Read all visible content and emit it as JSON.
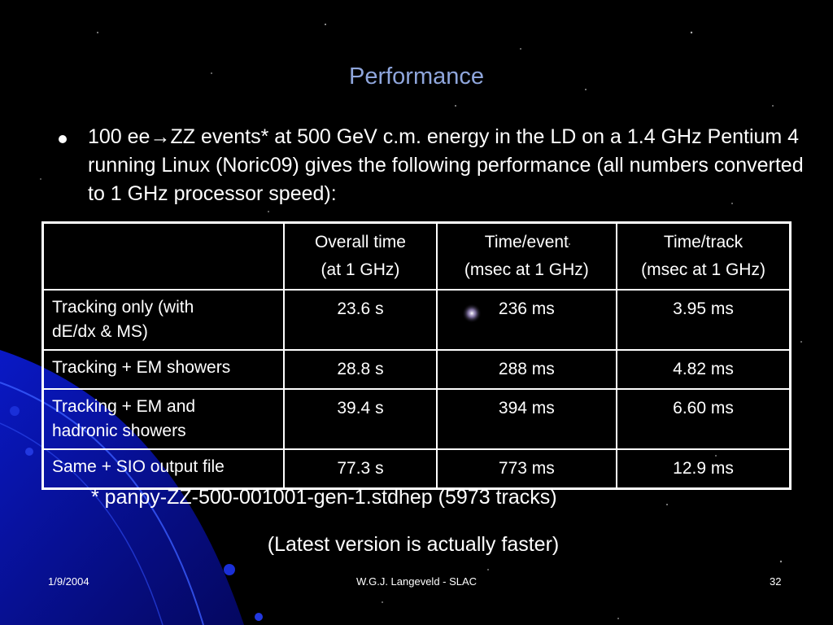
{
  "slide": {
    "title": "Performance",
    "bullet": {
      "prefix": "100 ee",
      "arrow": "→",
      "rest": "ZZ events* at 500 GeV c.m. energy in the LD on a 1.4 GHz Pentium 4 running Linux (Noric09) gives the following performance (all numbers converted to 1 GHz processor speed):"
    },
    "table": {
      "headers": [
        {
          "line1": "",
          "line2": ""
        },
        {
          "line1": "Overall time",
          "line2": "(at 1 GHz)"
        },
        {
          "line1": "Time/event",
          "line2": "(msec at 1 GHz)"
        },
        {
          "line1": "Time/track",
          "line2": "(msec at 1 GHz)"
        }
      ],
      "rows": [
        {
          "label_line1": "Tracking only (with",
          "label_line2": "dE/dx & MS)",
          "overall": "23.6 s",
          "event": "236 ms",
          "track": "3.95 ms"
        },
        {
          "label_line1": "Tracking + EM showers",
          "label_line2": "",
          "overall": "28.8 s",
          "event": "288 ms",
          "track": "4.82 ms"
        },
        {
          "label_line1": "Tracking + EM and",
          "label_line2": "hadronic showers",
          "overall": "39.4 s",
          "event": "394 ms",
          "track": "6.60 ms"
        },
        {
          "label_line1": "Same + SIO output file",
          "label_line2": "",
          "overall": "77.3 s",
          "event": "773 ms",
          "track": "12.9 ms"
        }
      ]
    },
    "footnote": "* panpy-ZZ-500-001001-gen-1.stdhep (5973 tracks)",
    "note": "(Latest version is actually faster)",
    "footer": {
      "date": "1/9/2004",
      "author": "W.G.J. Langeveld - SLAC",
      "page": "32"
    }
  },
  "colors": {
    "background": "#000000",
    "title": "#8fa6dc",
    "accent_blue": "#1a2fd8"
  }
}
